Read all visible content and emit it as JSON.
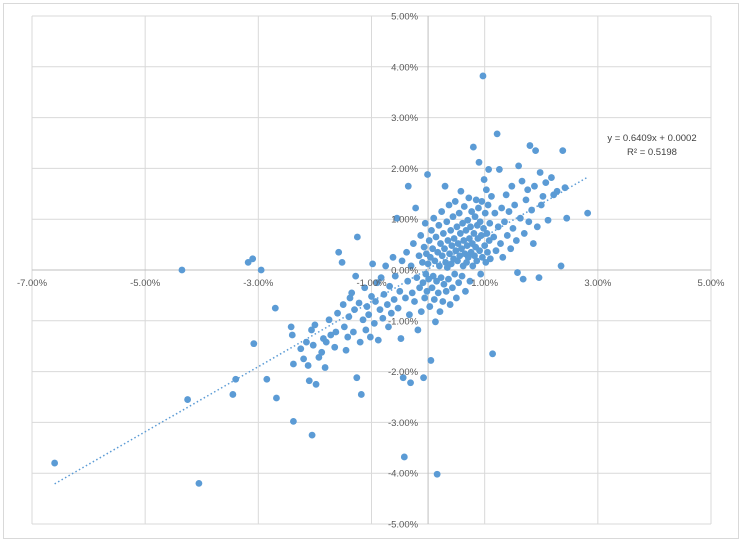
{
  "chart_data": {
    "type": "scatter",
    "xlim": [
      -0.07,
      0.05
    ],
    "ylim": [
      -0.05,
      0.05
    ],
    "grid": true,
    "x_ticks": [
      -0.07,
      -0.05,
      -0.03,
      -0.01,
      0.01,
      0.03,
      0.05
    ],
    "x_tick_labels": [
      "-7.00%",
      "-5.00%",
      "-3.00%",
      "-1.00%",
      "1.00%",
      "3.00%",
      "5.00%"
    ],
    "y_ticks": [
      -0.05,
      -0.04,
      -0.03,
      -0.02,
      -0.01,
      0.0,
      0.01,
      0.02,
      0.03,
      0.04,
      0.05
    ],
    "y_tick_labels": [
      "-5.00%",
      "-4.00%",
      "-3.00%",
      "-2.00%",
      "-1.00%",
      "0.00%",
      "1.00%",
      "2.00%",
      "3.00%",
      "4.00%",
      "5.00%"
    ],
    "marker_color": "#5b9bd5",
    "trendline": {
      "type": "linear",
      "slope": 0.6409,
      "intercept": 0.0002,
      "x_range": [
        -0.066,
        0.028
      ],
      "equation_label": "y = 0.6409x + 0.0002",
      "r2_label": "R² = 0.5198",
      "color": "#5b9bd5",
      "style": "dotted"
    },
    "points": [
      [
        -0.066,
        -0.038
      ],
      [
        -0.0435,
        0.0
      ],
      [
        -0.0425,
        -0.0255
      ],
      [
        -0.0405,
        -0.042
      ],
      [
        -0.0345,
        -0.0245
      ],
      [
        -0.034,
        -0.0215
      ],
      [
        -0.0318,
        0.0015
      ],
      [
        -0.031,
        0.0022
      ],
      [
        -0.0308,
        -0.0145
      ],
      [
        -0.0295,
        0.0
      ],
      [
        -0.0285,
        -0.0215
      ],
      [
        -0.027,
        -0.0075
      ],
      [
        -0.0268,
        -0.0252
      ],
      [
        -0.0242,
        -0.0112
      ],
      [
        -0.024,
        -0.0128
      ],
      [
        -0.0238,
        -0.0185
      ],
      [
        -0.0238,
        -0.0298
      ],
      [
        -0.0225,
        -0.0155
      ],
      [
        -0.022,
        -0.0175
      ],
      [
        -0.0215,
        -0.0142
      ],
      [
        -0.0212,
        -0.0188
      ],
      [
        -0.021,
        -0.0218
      ],
      [
        -0.0206,
        -0.0118
      ],
      [
        -0.0205,
        -0.0325
      ],
      [
        -0.0203,
        -0.0148
      ],
      [
        -0.02,
        -0.0108
      ],
      [
        -0.0198,
        -0.0225
      ],
      [
        -0.0193,
        -0.0172
      ],
      [
        -0.0188,
        -0.0162
      ],
      [
        -0.0185,
        -0.0135
      ],
      [
        -0.0182,
        -0.0192
      ],
      [
        -0.018,
        -0.0142
      ],
      [
        -0.0175,
        -0.0098
      ],
      [
        -0.0172,
        -0.0128
      ],
      [
        -0.0165,
        -0.0152
      ],
      [
        -0.0163,
        -0.0122
      ],
      [
        -0.016,
        -0.0085
      ],
      [
        -0.0158,
        0.0035
      ],
      [
        -0.0152,
        0.0015
      ],
      [
        -0.015,
        -0.0068
      ],
      [
        -0.0148,
        -0.0112
      ],
      [
        -0.0145,
        -0.0158
      ],
      [
        -0.0142,
        -0.0132
      ],
      [
        -0.014,
        -0.0092
      ],
      [
        -0.0138,
        -0.0055
      ],
      [
        -0.0135,
        -0.0045
      ],
      [
        -0.0132,
        -0.0122
      ],
      [
        -0.013,
        -0.0078
      ],
      [
        -0.0128,
        -0.0012
      ],
      [
        -0.0126,
        -0.0212
      ],
      [
        -0.0125,
        0.0065
      ],
      [
        -0.0122,
        -0.0065
      ],
      [
        -0.012,
        -0.0142
      ],
      [
        -0.0118,
        -0.0245
      ],
      [
        -0.0115,
        -0.0098
      ],
      [
        -0.0112,
        -0.0035
      ],
      [
        -0.011,
        -0.0118
      ],
      [
        -0.0108,
        -0.0072
      ],
      [
        -0.0105,
        -0.0088
      ],
      [
        -0.0102,
        -0.0132
      ],
      [
        -0.01,
        -0.0052
      ],
      [
        -0.0098,
        0.0012
      ],
      [
        -0.0095,
        -0.0105
      ],
      [
        -0.0093,
        -0.0062
      ],
      [
        -0.009,
        -0.0025
      ],
      [
        -0.0088,
        -0.0138
      ],
      [
        -0.0085,
        -0.0078
      ],
      [
        -0.0083,
        -0.0015
      ],
      [
        -0.008,
        -0.0095
      ],
      [
        -0.0078,
        -0.0048
      ],
      [
        -0.0075,
        0.0008
      ],
      [
        -0.0072,
        -0.0068
      ],
      [
        -0.007,
        -0.0112
      ],
      [
        -0.0068,
        -0.0032
      ],
      [
        -0.0065,
        -0.0085
      ],
      [
        -0.0062,
        0.0025
      ],
      [
        -0.006,
        -0.0058
      ],
      [
        -0.0058,
        -0.0012
      ],
      [
        -0.0055,
        0.0102
      ],
      [
        -0.0053,
        -0.0075
      ],
      [
        -0.005,
        -0.0042
      ],
      [
        -0.0048,
        -0.0135
      ],
      [
        -0.0046,
        0.0018
      ],
      [
        -0.0044,
        -0.0212
      ],
      [
        -0.0042,
        -0.0368
      ],
      [
        -0.004,
        -0.0055
      ],
      [
        -0.0038,
        0.0035
      ],
      [
        -0.0036,
        -0.0022
      ],
      [
        -0.0035,
        0.0165
      ],
      [
        -0.0033,
        -0.0088
      ],
      [
        -0.0031,
        -0.0222
      ],
      [
        -0.003,
        0.0008
      ],
      [
        -0.0028,
        -0.0045
      ],
      [
        -0.0026,
        0.0052
      ],
      [
        -0.0024,
        -0.0062
      ],
      [
        -0.0022,
        0.0122
      ],
      [
        -0.002,
        -0.0015
      ],
      [
        -0.0018,
        -0.0118
      ],
      [
        -0.0016,
        0.0028
      ],
      [
        -0.0015,
        -0.0035
      ],
      [
        -0.0013,
        0.0068
      ],
      [
        -0.0012,
        -0.0082
      ],
      [
        -0.001,
        0.0015
      ],
      [
        -0.0009,
        -0.0025
      ],
      [
        -0.0008,
        -0.0212
      ],
      [
        -0.0007,
        0.0045
      ],
      [
        -0.0006,
        -0.0055
      ],
      [
        -0.0005,
        0.0092
      ],
      [
        -0.0004,
        -0.0008
      ],
      [
        -0.0003,
        0.0032
      ],
      [
        -0.0002,
        -0.0042
      ],
      [
        -0.0001,
        0.0188
      ],
      [
        0.0,
        0.0012
      ],
      [
        0.0001,
        -0.0018
      ],
      [
        0.0002,
        0.0058
      ],
      [
        0.0003,
        -0.0072
      ],
      [
        0.0004,
        0.0025
      ],
      [
        0.0005,
        -0.0178
      ],
      [
        0.0006,
        0.0078
      ],
      [
        0.0007,
        -0.0035
      ],
      [
        0.0008,
        0.0042
      ],
      [
        0.0009,
        -0.0012
      ],
      [
        0.001,
        0.0102
      ],
      [
        0.0011,
        -0.0058
      ],
      [
        0.0012,
        0.0018
      ],
      [
        0.0013,
        -0.0102
      ],
      [
        0.0014,
        0.0065
      ],
      [
        0.0015,
        -0.0022
      ],
      [
        0.0016,
        -0.0402
      ],
      [
        0.0017,
        0.0035
      ],
      [
        0.0018,
        -0.0045
      ],
      [
        0.0019,
        0.0088
      ],
      [
        0.002,
        0.0008
      ],
      [
        0.0021,
        -0.0082
      ],
      [
        0.0022,
        0.0052
      ],
      [
        0.0023,
        -0.0015
      ],
      [
        0.0024,
        0.0115
      ],
      [
        0.0025,
        0.0028
      ],
      [
        0.0026,
        -0.0062
      ],
      [
        0.0027,
        0.0072
      ],
      [
        0.0028,
        -0.0028
      ],
      [
        0.0029,
        0.0042
      ],
      [
        0.003,
        0.0165
      ],
      [
        0.0031,
        0.0015
      ],
      [
        0.0032,
        -0.0042
      ],
      [
        0.0033,
        0.0095
      ],
      [
        0.0034,
        0.0005
      ],
      [
        0.0035,
        0.0058
      ],
      [
        0.0036,
        -0.0018
      ],
      [
        0.0037,
        0.0128
      ],
      [
        0.0038,
        0.0032
      ],
      [
        0.0039,
        -0.0068
      ],
      [
        0.004,
        0.0078
      ],
      [
        0.0041,
        0.0012
      ],
      [
        0.0042,
        0.0048
      ],
      [
        0.0043,
        -0.0035
      ],
      [
        0.0044,
        0.0105
      ],
      [
        0.0045,
        0.0022
      ],
      [
        0.0046,
        0.0062
      ],
      [
        0.0047,
        -0.0008
      ],
      [
        0.0048,
        0.0135
      ],
      [
        0.0049,
        0.0038
      ],
      [
        0.005,
        -0.0055
      ],
      [
        0.0051,
        0.0085
      ],
      [
        0.0052,
        0.0018
      ],
      [
        0.0053,
        0.0052
      ],
      [
        0.0054,
        -0.0025
      ],
      [
        0.0055,
        0.0112
      ],
      [
        0.0056,
        0.0028
      ],
      [
        0.0057,
        0.0072
      ],
      [
        0.0058,
        0.0155
      ],
      [
        0.0059,
        0.0042
      ],
      [
        0.006,
        -0.0012
      ],
      [
        0.0061,
        0.0092
      ],
      [
        0.0062,
        0.0008
      ],
      [
        0.0063,
        0.0058
      ],
      [
        0.0064,
        0.0125
      ],
      [
        0.0065,
        0.0032
      ],
      [
        0.0066,
        -0.0042
      ],
      [
        0.0067,
        0.0078
      ],
      [
        0.0068,
        0.0015
      ],
      [
        0.0069,
        0.0048
      ],
      [
        0.007,
        0.0098
      ],
      [
        0.0071,
        0.0025
      ],
      [
        0.0072,
        0.0142
      ],
      [
        0.0073,
        0.0062
      ],
      [
        0.0074,
        -0.0022
      ],
      [
        0.0075,
        0.0085
      ],
      [
        0.0076,
        0.0035
      ],
      [
        0.0077,
        0.0115
      ],
      [
        0.0078,
        0.0052
      ],
      [
        0.0079,
        0.0008
      ],
      [
        0.008,
        0.0242
      ],
      [
        0.0081,
        0.0072
      ],
      [
        0.0082,
        0.0028
      ],
      [
        0.0083,
        0.0105
      ],
      [
        0.0084,
        0.0045
      ],
      [
        0.0085,
        0.0138
      ],
      [
        0.0086,
        0.0018
      ],
      [
        0.0087,
        0.0088
      ],
      [
        0.0088,
        0.0062
      ],
      [
        0.0089,
        0.0122
      ],
      [
        0.009,
        0.0212
      ],
      [
        0.0091,
        0.0038
      ],
      [
        0.0092,
        0.0095
      ],
      [
        0.0093,
        -0.0008
      ],
      [
        0.0094,
        0.0068
      ],
      [
        0.0095,
        0.0135
      ],
      [
        0.0096,
        0.0025
      ],
      [
        0.0097,
        0.0382
      ],
      [
        0.0098,
        0.0082
      ],
      [
        0.0099,
        0.0178
      ],
      [
        0.01,
        0.0048
      ],
      [
        0.0101,
        0.0112
      ],
      [
        0.0102,
        0.0015
      ],
      [
        0.0103,
        0.0158
      ],
      [
        0.0104,
        0.0072
      ],
      [
        0.0105,
        0.0035
      ],
      [
        0.0106,
        0.0128
      ],
      [
        0.0107,
        0.0198
      ],
      [
        0.0108,
        0.0058
      ],
      [
        0.0109,
        0.0092
      ],
      [
        0.011,
        0.0022
      ],
      [
        0.0112,
        0.0145
      ],
      [
        0.0114,
        -0.0165
      ],
      [
        0.0116,
        0.0065
      ],
      [
        0.0118,
        0.0112
      ],
      [
        0.012,
        0.0038
      ],
      [
        0.0122,
        0.0268
      ],
      [
        0.0124,
        0.0085
      ],
      [
        0.0126,
        0.0198
      ],
      [
        0.0128,
        0.0052
      ],
      [
        0.013,
        0.0122
      ],
      [
        0.0132,
        0.0025
      ],
      [
        0.0135,
        0.0095
      ],
      [
        0.0138,
        0.0148
      ],
      [
        0.014,
        0.0068
      ],
      [
        0.0143,
        0.0115
      ],
      [
        0.0146,
        0.0042
      ],
      [
        0.0148,
        0.0165
      ],
      [
        0.015,
        0.0082
      ],
      [
        0.0153,
        0.0128
      ],
      [
        0.0156,
        0.0058
      ],
      [
        0.0158,
        -0.0005
      ],
      [
        0.016,
        0.0205
      ],
      [
        0.0163,
        0.0102
      ],
      [
        0.0166,
        0.0175
      ],
      [
        0.0168,
        -0.0018
      ],
      [
        0.017,
        0.0072
      ],
      [
        0.0173,
        0.0138
      ],
      [
        0.0176,
        0.0158
      ],
      [
        0.0178,
        0.0095
      ],
      [
        0.018,
        0.0245
      ],
      [
        0.0183,
        0.0118
      ],
      [
        0.0186,
        0.0052
      ],
      [
        0.0188,
        0.0165
      ],
      [
        0.019,
        0.0235
      ],
      [
        0.0193,
        0.0085
      ],
      [
        0.0196,
        -0.0015
      ],
      [
        0.0198,
        0.0192
      ],
      [
        0.02,
        0.0128
      ],
      [
        0.0203,
        0.0145
      ],
      [
        0.0208,
        0.0172
      ],
      [
        0.0212,
        0.0098
      ],
      [
        0.0218,
        0.0182
      ],
      [
        0.0222,
        0.0148
      ],
      [
        0.0228,
        0.0155
      ],
      [
        0.0235,
        0.0008
      ],
      [
        0.0238,
        0.0235
      ],
      [
        0.0242,
        0.0162
      ],
      [
        0.0245,
        0.0102
      ],
      [
        0.0282,
        0.0112
      ]
    ]
  }
}
